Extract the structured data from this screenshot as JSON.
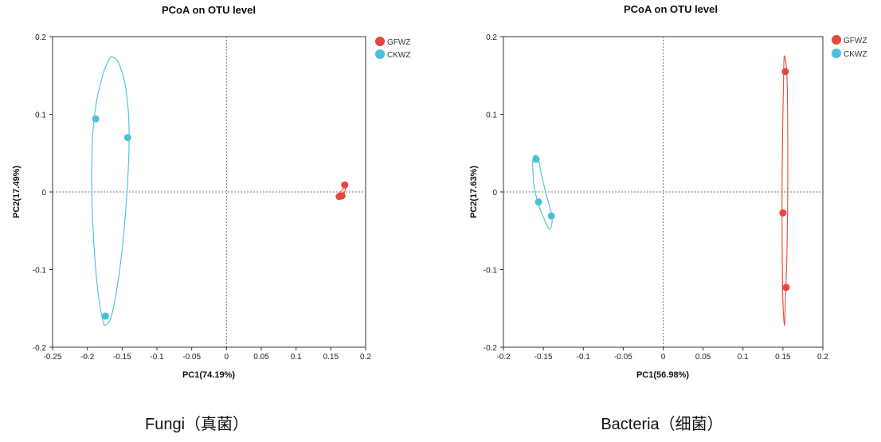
{
  "chart_data": [
    {
      "type": "scatter",
      "title": "PCoA on OTU level",
      "xlabel": "PC1(74.19%)",
      "ylabel": "PC2(17.49%)",
      "caption": "Fungi（真菌）",
      "xlim": [
        -0.25,
        0.2
      ],
      "ylim": [
        -0.2,
        0.2
      ],
      "xticks": [
        -0.25,
        -0.2,
        -0.15,
        -0.1,
        -0.05,
        0,
        0.05,
        0.1,
        0.15,
        0.2
      ],
      "xtick_labels": [
        "-0.25",
        "-0.2",
        "-0.15",
        "-0.1",
        "-0.05",
        "0",
        "0.05",
        "0.1",
        "0.15",
        "0.2"
      ],
      "yticks": [
        -0.2,
        -0.1,
        0,
        0.1,
        0.2
      ],
      "ytick_labels": [
        "-0.2",
        "-0.1",
        "0",
        "0.1",
        "0.2"
      ],
      "grid": false,
      "zero_lines": true,
      "legend": "top-right",
      "series": [
        {
          "name": "GFWZ",
          "color": "#e8473c",
          "points": [
            [
              0.17,
              0.009
            ],
            [
              0.162,
              -0.006
            ],
            [
              0.166,
              -0.005
            ]
          ],
          "ellipse": [
            [
              0.1725,
              0.01
            ],
            [
              0.168,
              -0.004
            ],
            [
              0.161,
              -0.009
            ],
            [
              0.159,
              -0.004
            ],
            [
              0.166,
              0.002
            ],
            [
              0.1725,
              0.01
            ]
          ]
        },
        {
          "name": "CKWZ",
          "color": "#4bbfd6",
          "points": [
            [
              -0.188,
              0.094
            ],
            [
              -0.142,
              0.07
            ],
            [
              -0.174,
              -0.16
            ]
          ],
          "ellipse": [
            [
              -0.163,
              0.173
            ],
            [
              -0.155,
              0.166
            ],
            [
              -0.145,
              0.135
            ],
            [
              -0.14,
              0.08
            ],
            [
              -0.143,
              0.0
            ],
            [
              -0.152,
              -0.09
            ],
            [
              -0.164,
              -0.155
            ],
            [
              -0.172,
              -0.17
            ],
            [
              -0.178,
              -0.165
            ],
            [
              -0.187,
              -0.11
            ],
            [
              -0.193,
              -0.02
            ],
            [
              -0.193,
              0.06
            ],
            [
              -0.188,
              0.11
            ],
            [
              -0.178,
              0.15
            ],
            [
              -0.168,
              0.172
            ],
            [
              -0.163,
              0.173
            ]
          ]
        }
      ]
    },
    {
      "type": "scatter",
      "title": "PCoA on OTU level",
      "xlabel": "PC1(56.98%)",
      "ylabel": "PC2(17.63%)",
      "caption": "Bacteria（细菌）",
      "xlim": [
        -0.2,
        0.2
      ],
      "ylim": [
        -0.2,
        0.2
      ],
      "xticks": [
        -0.2,
        -0.15,
        -0.1,
        -0.05,
        0,
        0.05,
        0.1,
        0.15,
        0.2
      ],
      "xtick_labels": [
        "-0.2",
        "-0.15",
        "-0.1",
        "-0.05",
        "0",
        "0.05",
        "0.1",
        "0.15",
        "0.2"
      ],
      "yticks": [
        -0.2,
        -0.1,
        0,
        0.1,
        0.2
      ],
      "ytick_labels": [
        "-0.2",
        "-0.1",
        "0",
        "0.1",
        "0.2"
      ],
      "grid": false,
      "zero_lines": true,
      "legend": "top-right",
      "series": [
        {
          "name": "GFWZ",
          "color": "#e8473c",
          "points": [
            [
              0.153,
              0.155
            ],
            [
              0.15,
              -0.027
            ],
            [
              0.154,
              -0.123
            ]
          ],
          "ellipse": [
            [
              0.152,
              0.175
            ],
            [
              0.155,
              0.15
            ],
            [
              0.156,
              0.08
            ],
            [
              0.156,
              0.0
            ],
            [
              0.155,
              -0.08
            ],
            [
              0.153,
              -0.14
            ],
            [
              0.152,
              -0.172
            ],
            [
              0.15,
              -0.14
            ],
            [
              0.149,
              -0.06
            ],
            [
              0.149,
              0.02
            ],
            [
              0.15,
              0.1
            ],
            [
              0.151,
              0.16
            ],
            [
              0.152,
              0.175
            ]
          ]
        },
        {
          "name": "CKWZ",
          "color": "#4bbfd6",
          "points": [
            [
              -0.159,
              0.042
            ],
            [
              -0.156,
              -0.013
            ],
            [
              -0.14,
              -0.031
            ]
          ],
          "ellipse": [
            [
              -0.163,
              0.043
            ],
            [
              -0.157,
              0.045
            ],
            [
              -0.153,
              0.025
            ],
            [
              -0.146,
              -0.005
            ],
            [
              -0.139,
              -0.032
            ],
            [
              -0.142,
              -0.048
            ],
            [
              -0.149,
              -0.035
            ],
            [
              -0.157,
              -0.013
            ],
            [
              -0.162,
              0.01
            ],
            [
              -0.163,
              0.043
            ]
          ]
        }
      ]
    }
  ]
}
